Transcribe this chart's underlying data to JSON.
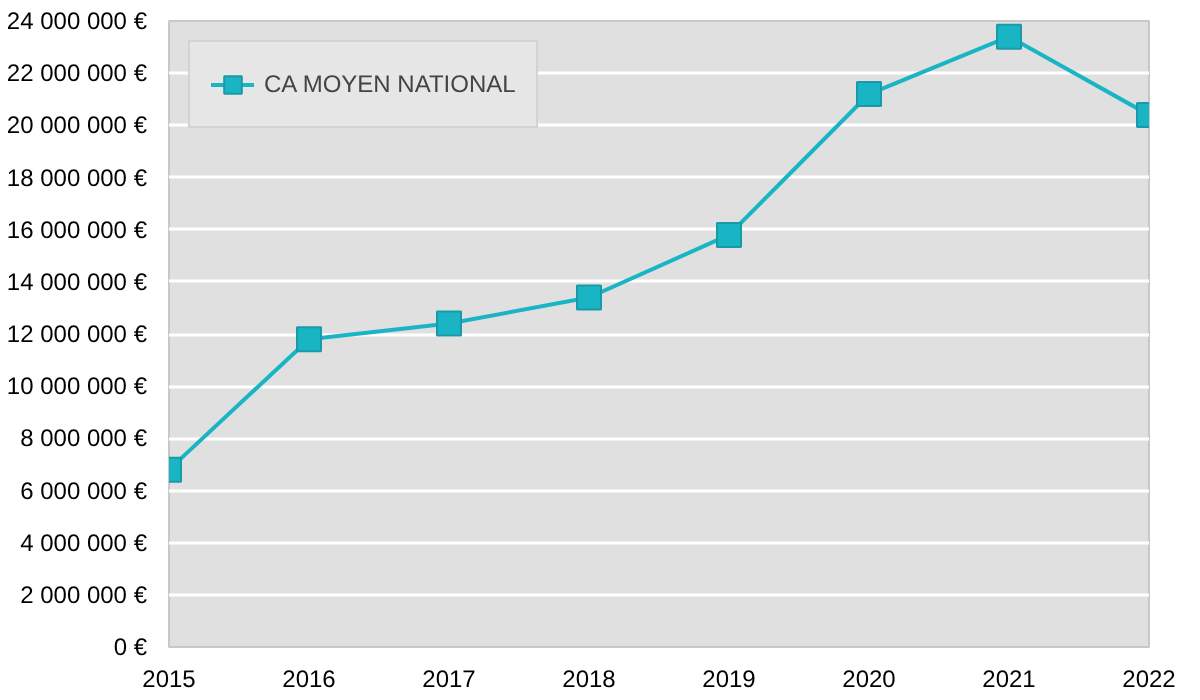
{
  "chart_data": {
    "type": "line",
    "x": [
      2015,
      2016,
      2017,
      2018,
      2019,
      2020,
      2021,
      2022
    ],
    "series": [
      {
        "name": "CA MOYEN NATIONAL",
        "color": "#1ab5c5",
        "values": [
          6800000,
          11800000,
          12400000,
          13400000,
          15800000,
          21200000,
          23400000,
          20400000
        ]
      }
    ],
    "xlim": [
      2015,
      2022
    ],
    "xticks": [
      2015,
      2016,
      2017,
      2018,
      2019,
      2020,
      2021,
      2022
    ],
    "ylim": [
      0,
      24000000
    ],
    "yticks": [
      {
        "value": 0,
        "label": "0 €"
      },
      {
        "value": 2000000,
        "label": "2 000 000 €"
      },
      {
        "value": 4000000,
        "label": "4 000 000 €"
      },
      {
        "value": 6000000,
        "label": "6 000 000 €"
      },
      {
        "value": 8000000,
        "label": "8 000 000 €"
      },
      {
        "value": 10000000,
        "label": "10 000 000 €"
      },
      {
        "value": 12000000,
        "label": "12 000 000 €"
      },
      {
        "value": 14000000,
        "label": "14 000 000 €"
      },
      {
        "value": 16000000,
        "label": "16 000 000 €"
      },
      {
        "value": 18000000,
        "label": "18 000 000 €"
      },
      {
        "value": 20000000,
        "label": "20 000 000 €"
      },
      {
        "value": 22000000,
        "label": "22 000 000 €"
      },
      {
        "value": 24000000,
        "label": "24 000 000 €"
      }
    ],
    "grid": "y",
    "legend": "top left",
    "marker": "square",
    "line_style": "solid"
  }
}
